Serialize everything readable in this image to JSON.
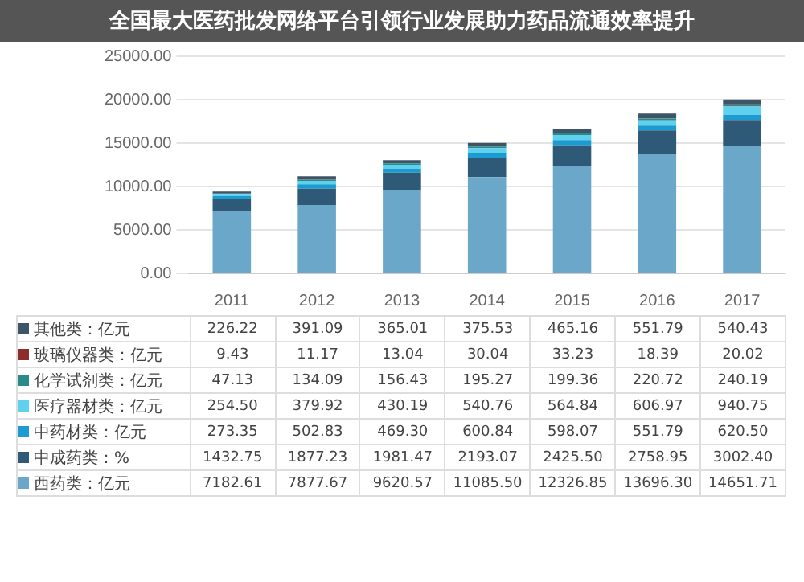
{
  "chart_data": {
    "type": "bar",
    "title": "全国最大医药批发网络平台引领行业发展助力药品流通效率提升",
    "stacked": true,
    "categories": [
      "2011",
      "2012",
      "2013",
      "2014",
      "2015",
      "2016",
      "2017"
    ],
    "series": [
      {
        "name": "西药类：亿元",
        "color": "#6aa7c8",
        "values": [
          7182.61,
          7877.67,
          9620.57,
          11085.5,
          12326.85,
          13696.3,
          14651.71
        ],
        "value_labels": [
          "7182.61",
          "7877.67",
          "9620.57",
          "11085.50",
          "12326.85",
          "13696.30",
          "14651.71"
        ]
      },
      {
        "name": "中成药类：%",
        "color": "#2e5a78",
        "values": [
          1432.75,
          1877.23,
          1981.47,
          2193.07,
          2425.5,
          2758.95,
          3002.4
        ],
        "value_labels": [
          "1432.75",
          "1877.23",
          "1981.47",
          "2193.07",
          "2425.50",
          "2758.95",
          "3002.40"
        ]
      },
      {
        "name": "中药材类：亿元",
        "color": "#1b9bd0",
        "values": [
          273.35,
          502.83,
          469.3,
          600.84,
          598.07,
          551.79,
          620.5
        ],
        "value_labels": [
          "273.35",
          "502.83",
          "469.30",
          "600.84",
          "598.07",
          "551.79",
          "620.50"
        ]
      },
      {
        "name": "医疗器材类：亿元",
        "color": "#5fd0ee",
        "values": [
          254.5,
          379.92,
          430.19,
          540.76,
          564.84,
          606.97,
          940.75
        ],
        "value_labels": [
          "254.50",
          "379.92",
          "430.19",
          "540.76",
          "564.84",
          "606.97",
          "940.75"
        ]
      },
      {
        "name": "化学试剂类：亿元",
        "color": "#2a8a8a",
        "values": [
          47.13,
          134.09,
          156.43,
          195.27,
          199.36,
          220.72,
          240.19
        ],
        "value_labels": [
          "47.13",
          "134.09",
          "156.43",
          "195.27",
          "199.36",
          "220.72",
          "240.19"
        ]
      },
      {
        "name": "玻璃仪器类：亿元",
        "color": "#8b2e2a",
        "values": [
          9.43,
          11.17,
          13.04,
          30.04,
          33.23,
          18.39,
          20.02
        ],
        "value_labels": [
          "9.43",
          "11.17",
          "13.04",
          "30.04",
          "33.23",
          "18.39",
          "20.02"
        ]
      },
      {
        "name": "其他类：亿元",
        "color": "#3d5566",
        "values": [
          226.22,
          391.09,
          365.01,
          375.53,
          465.16,
          551.79,
          540.43
        ],
        "value_labels": [
          "226.22",
          "391.09",
          "365.01",
          "375.53",
          "465.16",
          "551.79",
          "540.43"
        ]
      }
    ],
    "ylim": [
      0,
      25000
    ],
    "yticks": [
      {
        "value": 0,
        "label": "0.00"
      },
      {
        "value": 5000,
        "label": "5000.00"
      },
      {
        "value": 10000,
        "label": "10000.00"
      },
      {
        "value": 15000,
        "label": "15000.00"
      },
      {
        "value": 20000,
        "label": "20000.00"
      },
      {
        "value": 25000,
        "label": "25000.00"
      }
    ],
    "grid": "y",
    "legend": "bottom"
  }
}
